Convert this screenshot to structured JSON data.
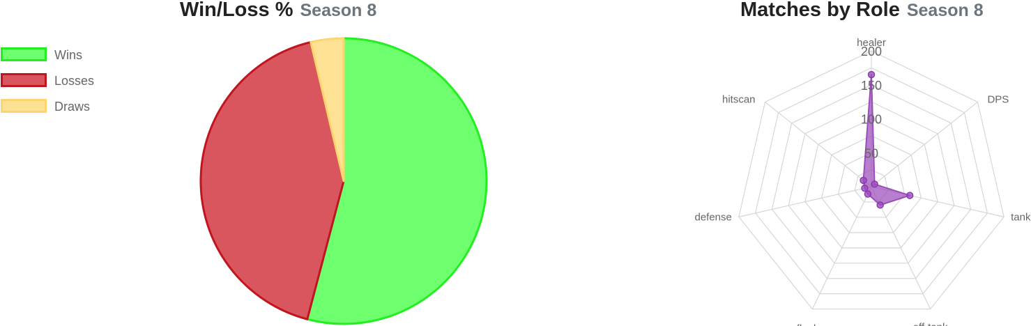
{
  "charts": {
    "winloss": {
      "title": "Win/Loss %",
      "subtitle": "Season 8"
    },
    "roles": {
      "title": "Matches by Role",
      "subtitle": "Season 8"
    }
  },
  "legend": [
    {
      "label": "Wins",
      "fill": "#6dff6d",
      "border": "#22ee22"
    },
    {
      "label": "Losses",
      "fill": "#d9565e",
      "border": "#c0141e"
    },
    {
      "label": "Draws",
      "fill": "#fde293",
      "border": "#fdd46e"
    }
  ],
  "chart_data": [
    {
      "type": "pie",
      "title": "Win/Loss %",
      "subtitle": "Season 8",
      "categories": [
        "Wins",
        "Losses",
        "Draws"
      ],
      "values": [
        54.1,
        42.2,
        3.7
      ],
      "colors": [
        "#6dff6d",
        "#d9565e",
        "#fde293"
      ],
      "border_colors": [
        "#22ee22",
        "#c0141e",
        "#fdd46e"
      ],
      "legend_position": "top-left"
    },
    {
      "type": "radar",
      "title": "Matches by Role",
      "subtitle": "Season 8",
      "categories": [
        "healer",
        "DPS",
        "tank",
        "off-tank",
        "flanker",
        "defense",
        "hitscan"
      ],
      "values": [
        165,
        6,
        58,
        30,
        12,
        10,
        15
      ],
      "range": [
        0,
        200
      ],
      "tick_values": [
        50,
        100,
        150,
        200
      ],
      "tick_labels": [
        "50",
        "100",
        "150",
        "200"
      ],
      "color": "#9b4dba",
      "grid": true
    }
  ]
}
